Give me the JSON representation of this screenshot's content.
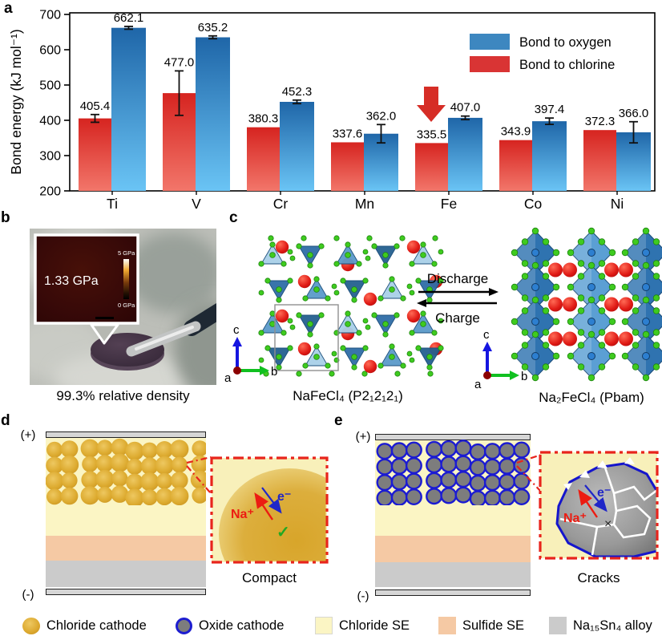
{
  "panels": {
    "a": "a",
    "b": "b",
    "c": "c",
    "d": "d",
    "e": "e"
  },
  "chart_data": {
    "type": "bar",
    "title": "",
    "ylabel": "Bond energy (kJ mol⁻¹)",
    "ylim": [
      200,
      700
    ],
    "yticks": [
      200,
      300,
      400,
      500,
      600,
      700
    ],
    "categories": [
      "Ti",
      "V",
      "Cr",
      "Mn",
      "Fe",
      "Co",
      "Ni"
    ],
    "series": [
      {
        "name": "Bond to chlorine",
        "values": [
          405.4,
          477.0,
          380.3,
          337.6,
          335.5,
          343.9,
          372.3
        ],
        "errors": [
          11,
          63,
          0,
          0,
          0,
          0,
          0
        ],
        "color_top": "#d62420",
        "color_bottom": "#f2766a",
        "legend_color": "#d93434"
      },
      {
        "name": "Bond to oxygen",
        "values": [
          662.1,
          635.2,
          452.3,
          362.0,
          407.0,
          397.4,
          366.0
        ],
        "errors": [
          4,
          4,
          5,
          26,
          5,
          9,
          30
        ],
        "color_top": "#1f66a8",
        "color_bottom": "#6ac4f5",
        "legend_color": "#3d87c0"
      }
    ],
    "legend": [
      "Bond to oxygen",
      "Bond to chlorine"
    ],
    "legend_position": "top-right",
    "grid": false,
    "annotation": {
      "type": "red-down-arrow",
      "category": "Fe",
      "color": "#d62d26"
    }
  },
  "panel_b": {
    "pressure_label": "1.33 GPa",
    "scale_top": "5 GPa",
    "scale_bottom": "0 GPa",
    "caption": "99.3% relative density"
  },
  "panel_c": {
    "left_caption": "NaFeCl₄ (P2₁2₁2₁)",
    "right_caption": "Na₂FeCl₄ (Pbam)",
    "forward_label": "Discharge",
    "reverse_label": "Charge",
    "axis_left": {
      "up": "c",
      "right": "b",
      "origin": "a"
    },
    "axis_right": {
      "up": "c",
      "right": "b",
      "origin": "a"
    }
  },
  "panel_d": {
    "positive": "(+)",
    "negative": "(-)",
    "ion_label": "Na⁺",
    "electron_label": "e⁻",
    "status_mark": "✓",
    "caption": "Compact"
  },
  "panel_e": {
    "positive": "(+)",
    "negative": "(-)",
    "ion_label": "Na⁺",
    "electron_label": "e⁻",
    "fail_mark": "×",
    "caption": "Cracks"
  },
  "legend": {
    "items": [
      {
        "label": "Chloride cathode",
        "swatch": "gold-sphere"
      },
      {
        "label": "Oxide cathode",
        "swatch": "grey-sphere-blue-ring"
      },
      {
        "label": "Chloride SE",
        "swatch": "pale-yellow-square"
      },
      {
        "label": "Sulfide SE",
        "swatch": "peach-square"
      },
      {
        "label": "Na₁₅Sn₄ alloy",
        "swatch": "grey-square"
      }
    ]
  }
}
